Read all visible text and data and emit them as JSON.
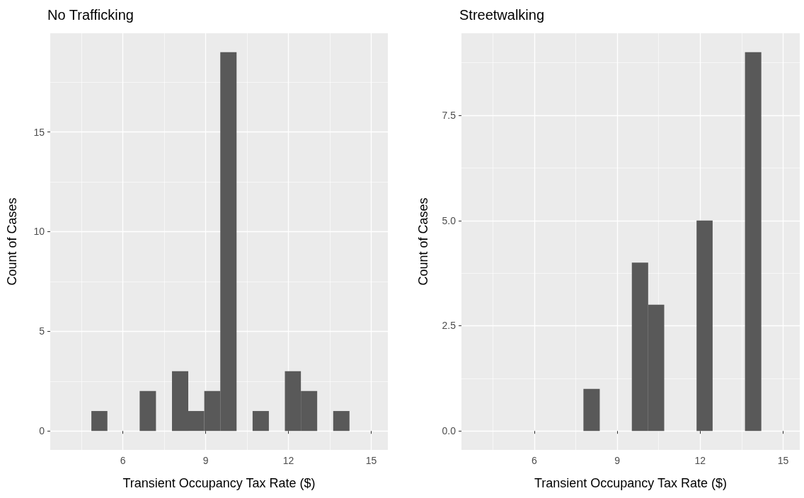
{
  "chart_data": [
    {
      "type": "histogram",
      "title": "No Trafficking",
      "xlabel": "Transient Occupancy Tax Rate ($)",
      "ylabel": "Count of Cases",
      "bins": [
        4.86,
        5.44,
        6.03,
        6.61,
        7.2,
        7.78,
        8.37,
        8.95,
        9.53,
        10.12,
        10.7,
        11.29,
        11.87,
        12.45,
        13.04,
        13.62,
        14.21
      ],
      "values": [
        1,
        0,
        0,
        2,
        0,
        3,
        1,
        2,
        19,
        0,
        1,
        0,
        3,
        2,
        0,
        1
      ],
      "color": "#595959",
      "xlim": [
        3.37,
        15.6
      ],
      "xticks": [
        6,
        9,
        12,
        15
      ],
      "ylim": [
        -0.95,
        19.95
      ],
      "yticks": [
        0,
        5,
        10,
        15
      ],
      "grid": true
    },
    {
      "type": "histogram",
      "title": "Streetwalking",
      "xlabel": "Transient Occupancy Tax Rate ($)",
      "ylabel": "Count of Cases",
      "bins": [
        7.78,
        8.37,
        8.95,
        9.53,
        10.12,
        10.7,
        11.29,
        11.87,
        12.45,
        13.04,
        13.62,
        14.21
      ],
      "values": [
        1,
        0,
        0,
        4,
        3,
        0,
        0,
        5,
        0,
        0,
        9
      ],
      "color": "#595959",
      "xlim": [
        3.37,
        15.6
      ],
      "xticks": [
        6,
        9,
        12,
        15
      ],
      "ylim": [
        -0.45,
        9.45
      ],
      "yticks": [
        {
          "value": 0,
          "label": "0.0"
        },
        {
          "value": 2.5,
          "label": "2.5"
        },
        {
          "value": 5,
          "label": "5.0"
        },
        {
          "value": 7.5,
          "label": "7.5"
        }
      ],
      "grid": true
    }
  ]
}
